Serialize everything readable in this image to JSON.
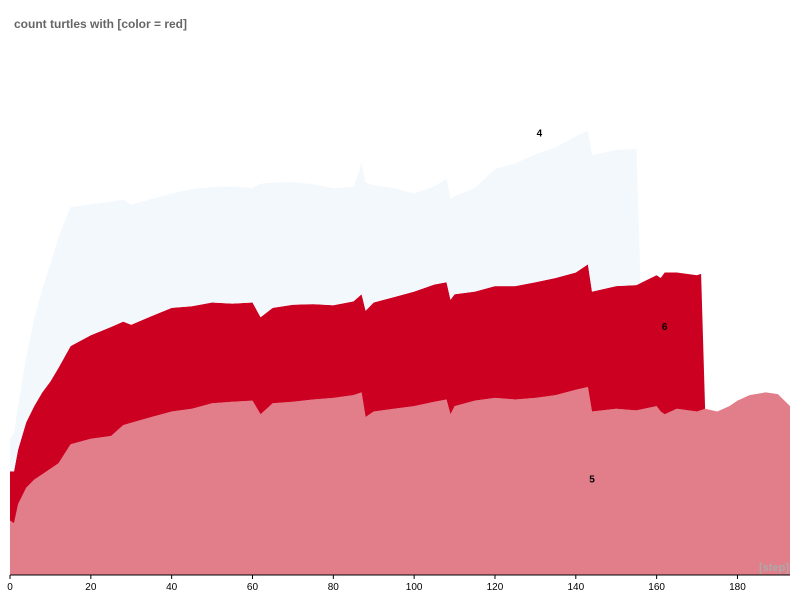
{
  "chart_data": {
    "type": "area",
    "stacked": true,
    "title": "count turtles with [color = red]",
    "xlabel": "[step]",
    "ylabel": "",
    "xlim": [
      0,
      193
    ],
    "ylim": [
      0,
      1000
    ],
    "x_ticks": [
      0,
      20,
      40,
      60,
      80,
      100,
      120,
      140,
      160,
      180
    ],
    "grid": false,
    "legend": "none",
    "series": [
      {
        "name": "5",
        "color": "#e27d8a",
        "label_at": [
          144,
          170
        ],
        "points": [
          [
            0,
            100
          ],
          [
            1,
            95
          ],
          [
            2,
            130
          ],
          [
            4,
            160
          ],
          [
            6,
            175
          ],
          [
            8,
            185
          ],
          [
            10,
            195
          ],
          [
            12,
            205
          ],
          [
            15,
            240
          ],
          [
            20,
            250
          ],
          [
            25,
            255
          ],
          [
            28,
            275
          ],
          [
            35,
            290
          ],
          [
            40,
            300
          ],
          [
            45,
            305
          ],
          [
            50,
            315
          ],
          [
            55,
            318
          ],
          [
            60,
            320
          ],
          [
            62,
            295
          ],
          [
            65,
            315
          ],
          [
            70,
            318
          ],
          [
            75,
            322
          ],
          [
            80,
            325
          ],
          [
            85,
            330
          ],
          [
            87,
            335
          ],
          [
            88,
            290
          ],
          [
            90,
            300
          ],
          [
            95,
            305
          ],
          [
            100,
            310
          ],
          [
            105,
            318
          ],
          [
            108,
            322
          ],
          [
            109,
            295
          ],
          [
            110,
            310
          ],
          [
            115,
            320
          ],
          [
            120,
            325
          ],
          [
            125,
            322
          ],
          [
            130,
            325
          ],
          [
            135,
            330
          ],
          [
            140,
            340
          ],
          [
            143,
            345
          ],
          [
            144,
            300
          ],
          [
            150,
            305
          ],
          [
            155,
            302
          ],
          [
            160,
            310
          ],
          [
            161,
            300
          ],
          [
            162,
            295
          ],
          [
            165,
            305
          ],
          [
            170,
            300
          ],
          [
            172,
            305
          ],
          [
            175,
            300
          ],
          [
            178,
            310
          ],
          [
            180,
            320
          ],
          [
            183,
            330
          ],
          [
            187,
            335
          ],
          [
            190,
            332
          ],
          [
            193,
            310
          ]
        ]
      },
      {
        "name": "6",
        "color": "#cc0020",
        "label_at": [
          162,
          450
        ],
        "points": [
          [
            0,
            90
          ],
          [
            2,
            100
          ],
          [
            4,
            120
          ],
          [
            6,
            135
          ],
          [
            8,
            150
          ],
          [
            10,
            160
          ],
          [
            12,
            175
          ],
          [
            15,
            180
          ],
          [
            20,
            190
          ],
          [
            25,
            200
          ],
          [
            28,
            190
          ],
          [
            30,
            180
          ],
          [
            35,
            185
          ],
          [
            40,
            190
          ],
          [
            45,
            188
          ],
          [
            50,
            185
          ],
          [
            55,
            180
          ],
          [
            60,
            180
          ],
          [
            62,
            178
          ],
          [
            65,
            175
          ],
          [
            70,
            178
          ],
          [
            75,
            175
          ],
          [
            80,
            170
          ],
          [
            85,
            172
          ],
          [
            87,
            180
          ],
          [
            88,
            195
          ],
          [
            90,
            200
          ],
          [
            95,
            205
          ],
          [
            100,
            210
          ],
          [
            105,
            215
          ],
          [
            108,
            215
          ],
          [
            109,
            210
          ],
          [
            110,
            205
          ],
          [
            115,
            200
          ],
          [
            120,
            205
          ],
          [
            125,
            208
          ],
          [
            130,
            212
          ],
          [
            135,
            215
          ],
          [
            140,
            215
          ],
          [
            143,
            225
          ],
          [
            144,
            220
          ],
          [
            150,
            225
          ],
          [
            155,
            230
          ],
          [
            160,
            240
          ],
          [
            161,
            245
          ],
          [
            162,
            260
          ],
          [
            165,
            250
          ],
          [
            170,
            250
          ],
          [
            171,
            250
          ],
          [
            172,
            0
          ]
        ]
      },
      {
        "name": "4",
        "color": "#f3f8fd",
        "label_at": [
          131,
          805
        ],
        "points": [
          [
            0,
            60
          ],
          [
            2,
            80
          ],
          [
            4,
            120
          ],
          [
            6,
            160
          ],
          [
            8,
            190
          ],
          [
            10,
            215
          ],
          [
            12,
            240
          ],
          [
            15,
            255
          ],
          [
            20,
            240
          ],
          [
            25,
            230
          ],
          [
            30,
            220
          ],
          [
            35,
            215
          ],
          [
            40,
            210
          ],
          [
            45,
            215
          ],
          [
            50,
            212
          ],
          [
            55,
            215
          ],
          [
            60,
            210
          ],
          [
            62,
            245
          ],
          [
            65,
            230
          ],
          [
            70,
            225
          ],
          [
            75,
            220
          ],
          [
            80,
            215
          ],
          [
            85,
            210
          ],
          [
            87,
            240
          ],
          [
            88,
            235
          ],
          [
            90,
            215
          ],
          [
            95,
            200
          ],
          [
            100,
            180
          ],
          [
            105,
            180
          ],
          [
            108,
            190
          ],
          [
            109,
            185
          ],
          [
            110,
            180
          ],
          [
            115,
            190
          ],
          [
            120,
            215
          ],
          [
            125,
            225
          ],
          [
            130,
            235
          ],
          [
            135,
            240
          ],
          [
            140,
            250
          ],
          [
            143,
            245
          ],
          [
            144,
            250
          ],
          [
            150,
            250
          ],
          [
            155,
            250
          ],
          [
            156,
            0
          ]
        ]
      }
    ]
  }
}
